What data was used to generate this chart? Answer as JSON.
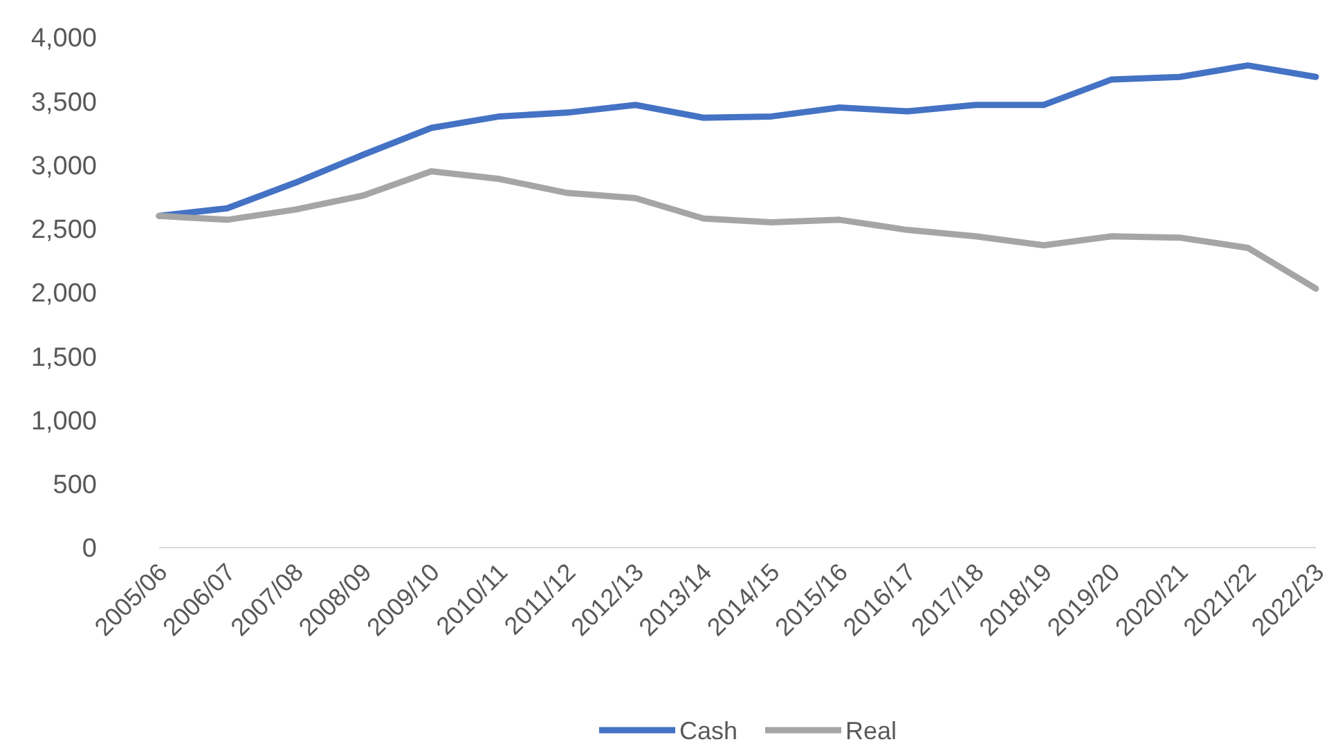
{
  "chart_data": {
    "type": "line",
    "categories": [
      "2005/06",
      "2006/07",
      "2007/08",
      "2008/09",
      "2009/10",
      "2010/11",
      "2011/12",
      "2012/13",
      "2013/14",
      "2014/15",
      "2015/16",
      "2016/17",
      "2017/18",
      "2018/19",
      "2019/20",
      "2020/21",
      "2021/22",
      "2022/23"
    ],
    "series": [
      {
        "name": "Cash",
        "color": "#4472c4",
        "values": [
          2600,
          2660,
          2860,
          3080,
          3290,
          3380,
          3410,
          3470,
          3370,
          3380,
          3450,
          3420,
          3470,
          3470,
          3670,
          3690,
          3780,
          3690
        ]
      },
      {
        "name": "Real",
        "color": "#a5a5a5",
        "values": [
          2600,
          2570,
          2650,
          2760,
          2950,
          2890,
          2780,
          2740,
          2580,
          2550,
          2570,
          2490,
          2440,
          2370,
          2440,
          2430,
          2350,
          2030
        ]
      }
    ],
    "ylim": [
      0,
      4000
    ],
    "yticks": [
      {
        "value": 0,
        "label": "0"
      },
      {
        "value": 500,
        "label": "500"
      },
      {
        "value": 1000,
        "label": "1,000"
      },
      {
        "value": 1500,
        "label": "1,500"
      },
      {
        "value": 2000,
        "label": "2,000"
      },
      {
        "value": 2500,
        "label": "2,500"
      },
      {
        "value": 3000,
        "label": "3,000"
      },
      {
        "value": 3500,
        "label": "3,500"
      },
      {
        "value": 4000,
        "label": "4,000"
      }
    ],
    "grid": false,
    "legend": "bottom",
    "marker": "none",
    "line_style": "solid"
  }
}
